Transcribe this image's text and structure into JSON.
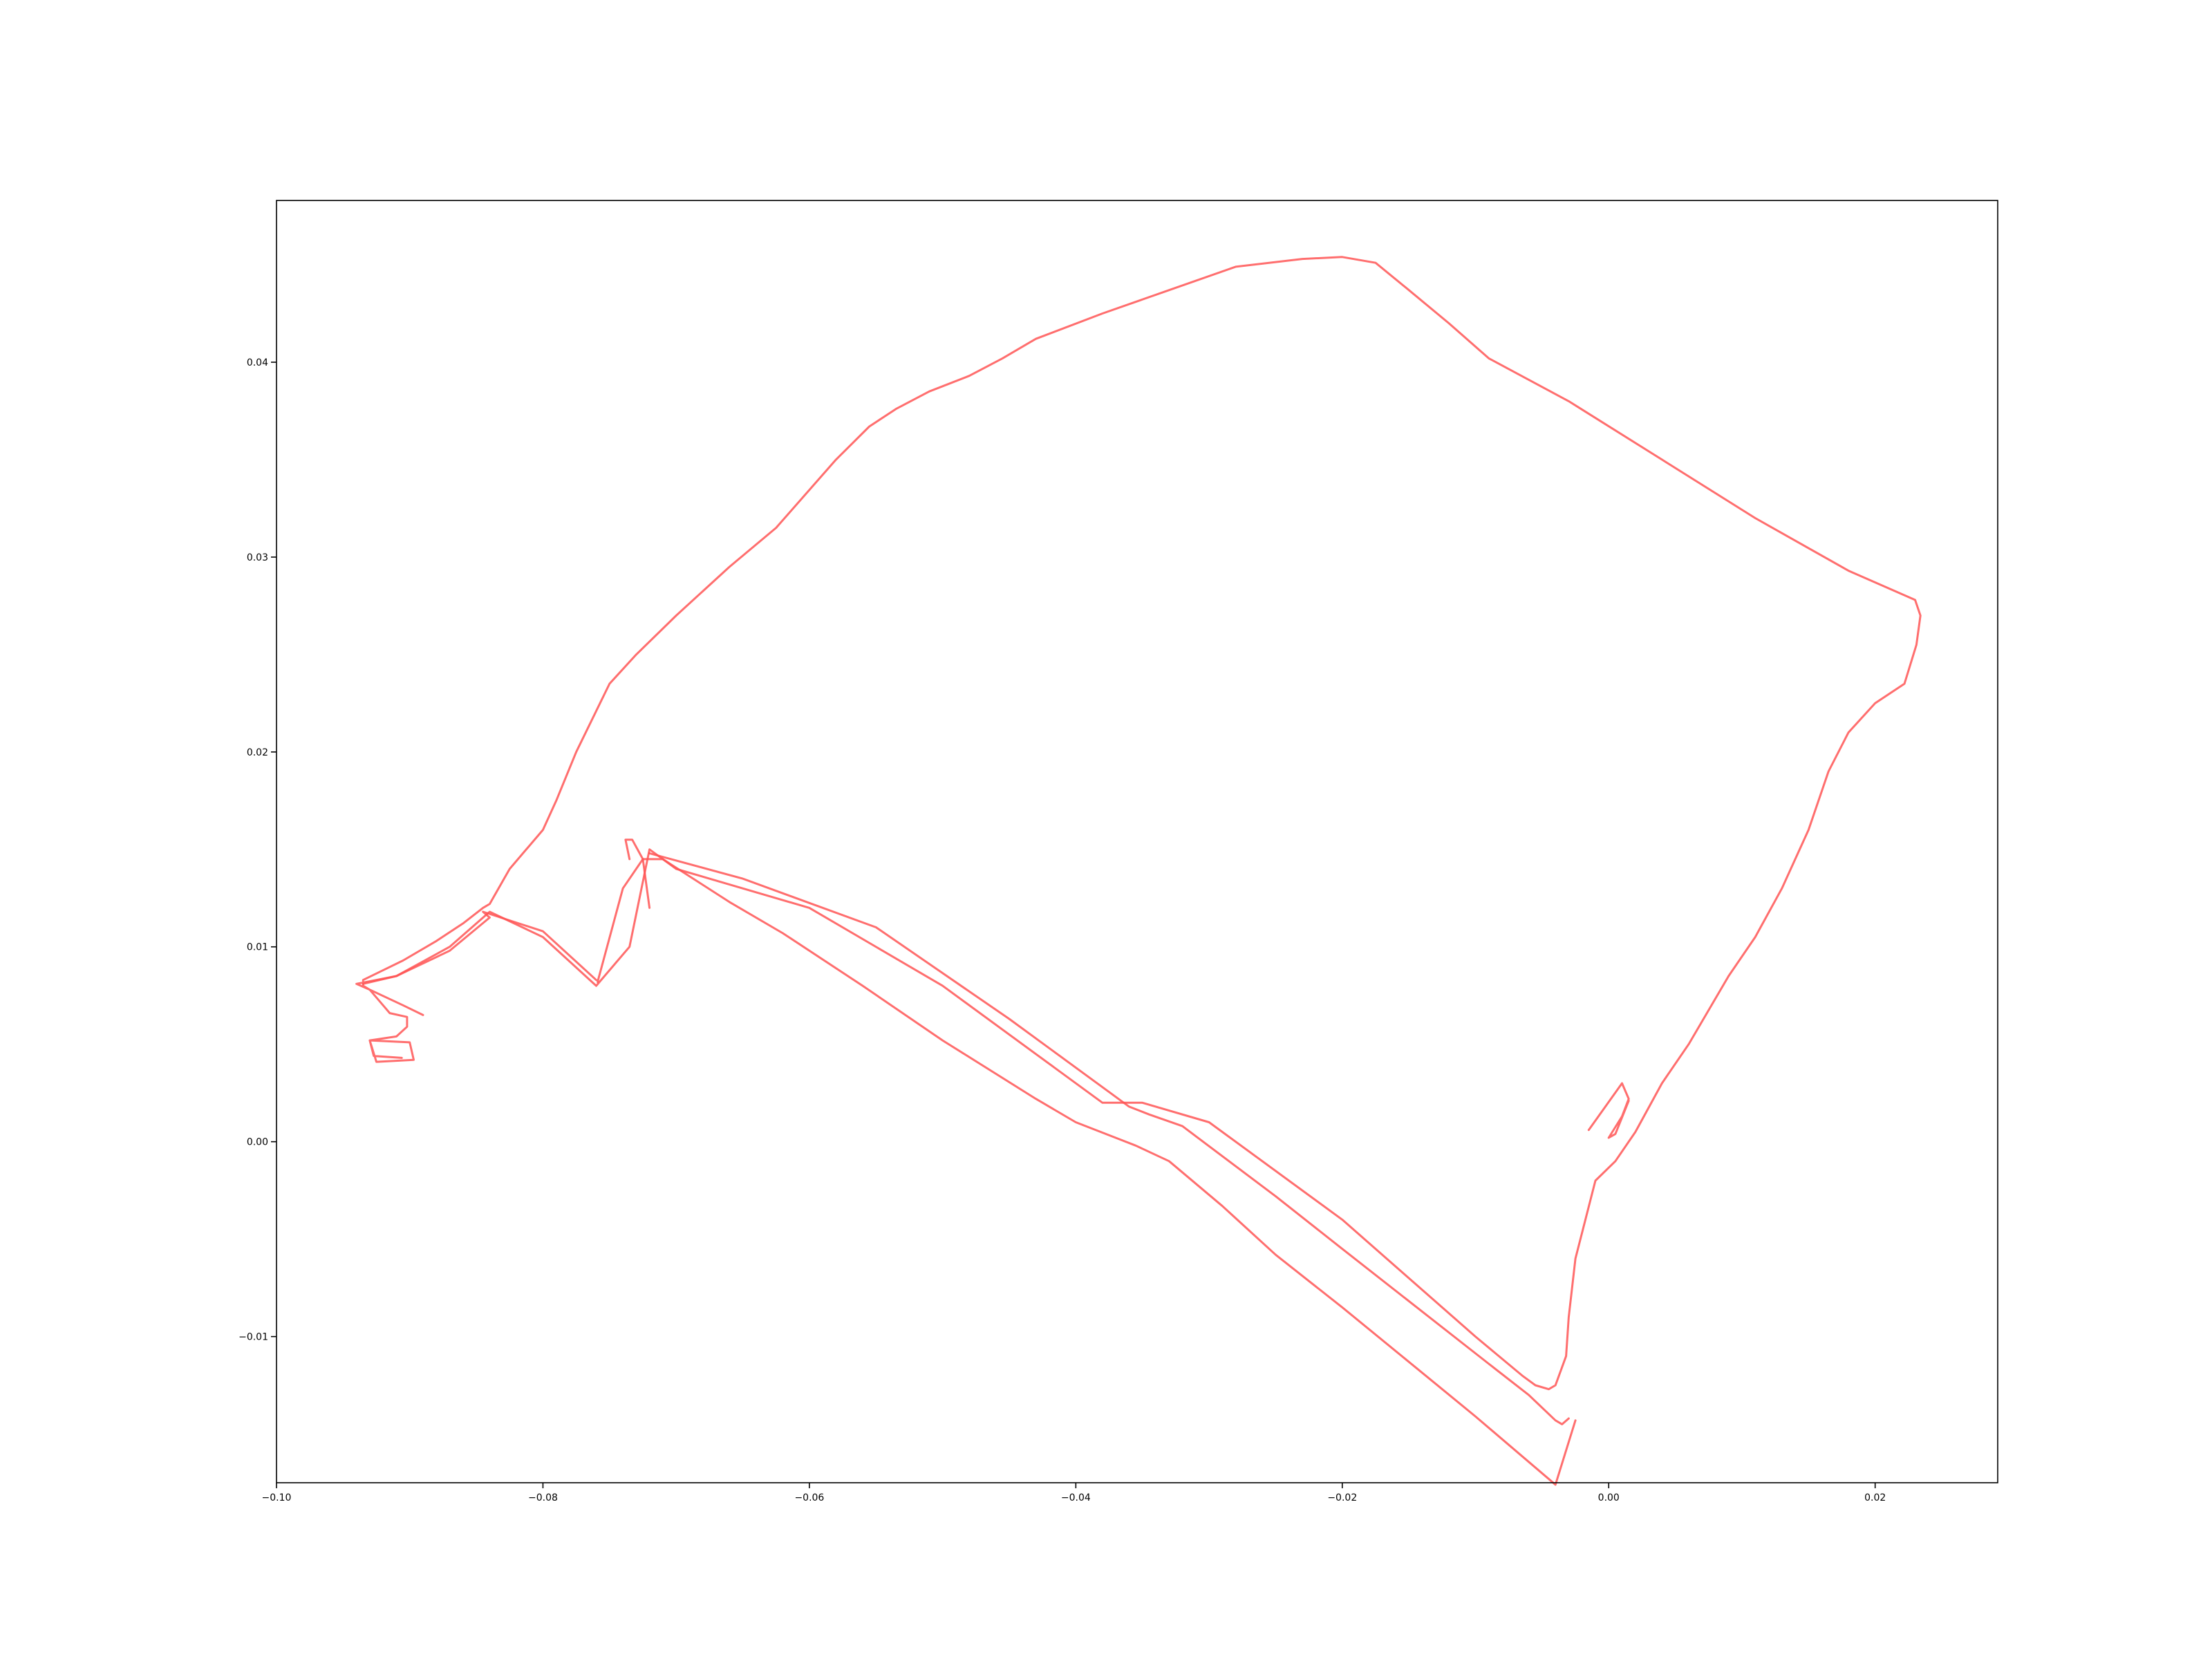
{
  "chart_data": {
    "type": "line",
    "title": "",
    "xlabel": "",
    "ylabel": "",
    "xlim": [
      -0.1,
      0.0292
    ],
    "ylim": [
      -0.0175,
      0.0483
    ],
    "grid": false,
    "line_color": "#ff5555",
    "x_ticks": [
      {
        "value": -0.1,
        "label": "−0.10"
      },
      {
        "value": -0.08,
        "label": "−0.08"
      },
      {
        "value": -0.06,
        "label": "−0.06"
      },
      {
        "value": -0.04,
        "label": "−0.04"
      },
      {
        "value": -0.02,
        "label": "−0.02"
      },
      {
        "value": 0.0,
        "label": "0.00"
      },
      {
        "value": 0.02,
        "label": "0.02"
      }
    ],
    "y_ticks": [
      {
        "value": -0.01,
        "label": "−0.01"
      },
      {
        "value": 0.0,
        "label": "0.00"
      },
      {
        "value": 0.01,
        "label": "0.01"
      },
      {
        "value": 0.02,
        "label": "0.02"
      },
      {
        "value": 0.03,
        "label": "0.03"
      },
      {
        "value": 0.04,
        "label": "0.04"
      }
    ],
    "series": [
      {
        "x": [
          -0.0906,
          -0.0927,
          -0.093,
          -0.09,
          -0.0897,
          -0.0925,
          -0.093,
          -0.091,
          -0.0902,
          -0.0902,
          -0.0915,
          -0.092,
          -0.093,
          -0.0935,
          -0.0935,
          -0.0905,
          -0.088,
          -0.086,
          -0.0845,
          -0.084,
          -0.0825,
          -0.08,
          -0.079,
          -0.0775,
          -0.075,
          -0.073,
          -0.07,
          -0.066,
          -0.0625,
          -0.058,
          -0.0555,
          -0.0535,
          -0.051,
          -0.048,
          -0.0455,
          -0.043,
          -0.038,
          -0.033,
          -0.028,
          -0.023,
          -0.02,
          -0.0175,
          -0.015,
          -0.012,
          -0.009,
          -0.003,
          0.004,
          0.011,
          0.018,
          0.023,
          0.0234,
          0.0231,
          0.0222,
          0.02,
          0.018,
          0.0165,
          0.015,
          0.013,
          0.011,
          0.009,
          0.006,
          0.004,
          0.002,
          0.0005,
          -0.001,
          -0.0025,
          -0.003,
          -0.0032,
          -0.004,
          -0.0045,
          -0.0055,
          -0.0065,
          -0.01,
          -0.02,
          -0.03,
          -0.035,
          -0.038,
          -0.05,
          -0.06,
          -0.07,
          -0.072,
          -0.0735,
          -0.076,
          -0.08,
          -0.084,
          -0.087,
          -0.091,
          -0.094,
          -0.093,
          -0.0905,
          -0.089
        ],
        "y": [
          0.0043,
          0.0044,
          0.0052,
          0.0051,
          0.0042,
          0.0041,
          0.0052,
          0.0054,
          0.0059,
          0.0064,
          0.0066,
          0.007,
          0.0078,
          0.008,
          0.0083,
          0.0093,
          0.0103,
          0.0112,
          0.012,
          0.0122,
          0.014,
          0.016,
          0.0175,
          0.02,
          0.0235,
          0.025,
          0.027,
          0.0295,
          0.0315,
          0.035,
          0.0367,
          0.0376,
          0.0385,
          0.0393,
          0.0402,
          0.0412,
          0.0425,
          0.0437,
          0.0449,
          0.0453,
          0.0454,
          0.0451,
          0.0437,
          0.042,
          0.0402,
          0.038,
          0.035,
          0.032,
          0.0293,
          0.0278,
          0.027,
          0.0255,
          0.0235,
          0.0225,
          0.021,
          0.019,
          0.016,
          0.013,
          0.0105,
          0.0085,
          0.005,
          0.003,
          0.0005,
          -0.001,
          -0.002,
          -0.006,
          -0.009,
          -0.011,
          -0.0125,
          -0.0127,
          -0.0125,
          -0.012,
          -0.01,
          -0.004,
          0.001,
          0.002,
          0.002,
          0.008,
          0.012,
          0.014,
          0.015,
          0.01,
          0.008,
          0.0105,
          0.0118,
          0.01,
          0.0085,
          0.0081,
          0.0078,
          0.007,
          0.0065
        ]
      },
      {
        "x": [
          -0.076,
          -0.08,
          -0.0845,
          -0.084,
          -0.087,
          -0.091,
          -0.0935
        ],
        "y": [
          0.0083,
          0.0108,
          0.0118,
          0.0115,
          0.0098,
          0.0085,
          0.0081
        ]
      },
      {
        "x": [
          -0.0759,
          -0.074,
          -0.0725,
          -0.071,
          -0.066,
          -0.062,
          -0.056,
          -0.05,
          -0.043,
          -0.04,
          -0.0355,
          -0.033,
          -0.029,
          -0.025,
          -0.02,
          -0.015,
          -0.01,
          -0.004,
          -0.0025
        ],
        "y": [
          0.0082,
          0.013,
          0.0145,
          0.0145,
          0.0123,
          0.0107,
          0.008,
          0.0052,
          0.0022,
          0.001,
          -0.0002,
          -0.001,
          -0.0033,
          -0.0058,
          -0.0085,
          -0.0113,
          -0.0141,
          -0.0176,
          -0.0143
        ]
      },
      {
        "x": [
          -0.0735,
          -0.0738,
          -0.0733,
          -0.0725,
          -0.072
        ],
        "y": [
          0.0145,
          0.0155,
          0.0155,
          0.0145,
          0.012
        ]
      },
      {
        "x": [
          -0.003,
          -0.0035,
          -0.004,
          -0.006,
          -0.009,
          -0.02,
          -0.025,
          -0.032,
          -0.0345,
          -0.036,
          -0.045,
          -0.055,
          -0.065,
          -0.072
        ],
        "y": [
          -0.0142,
          -0.0145,
          -0.0143,
          -0.013,
          -0.0114,
          -0.0055,
          -0.0028,
          0.0008,
          0.0014,
          0.0018,
          0.0063,
          0.011,
          0.0135,
          0.0148
        ]
      },
      {
        "x": [
          -0.0015,
          0.001,
          0.0015,
          0.001,
          0.0,
          0.0005,
          0.0015
        ],
        "y": [
          0.0006,
          0.003,
          0.0022,
          0.0013,
          0.0002,
          0.0004,
          0.0021
        ]
      }
    ]
  }
}
